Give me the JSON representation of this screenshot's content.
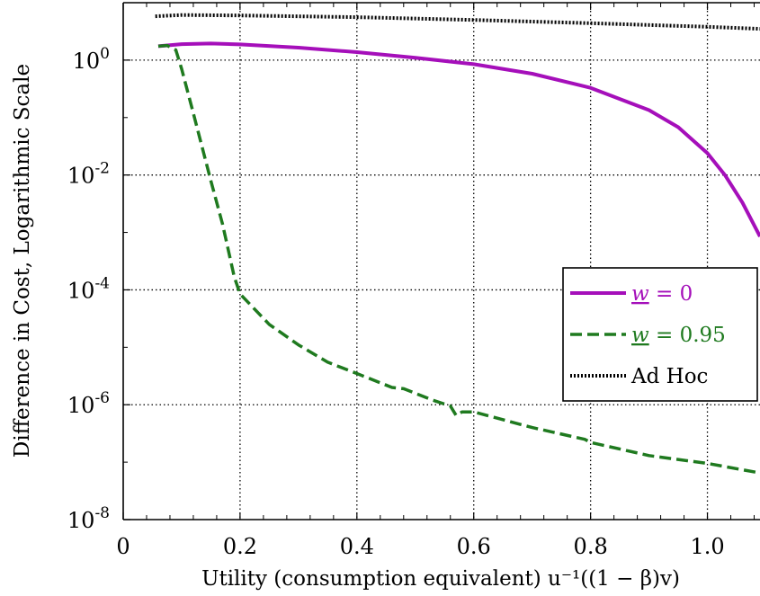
{
  "chart_data": {
    "type": "line",
    "xlabel": "Utility (consumption equivalent) u⁻¹((1 − β)v)",
    "ylabel": "Difference in Cost, Logarithmic Scale",
    "xlim": [
      0,
      1.09
    ],
    "ylim": [
      1e-08,
      10
    ],
    "yscale": "log",
    "grid": true,
    "legend_position": "right",
    "x_ticks": [
      0,
      0.2,
      0.4,
      0.6,
      0.8,
      1.0
    ],
    "x_tick_labels": [
      "0",
      "0.2",
      "0.4",
      "0.6",
      "0.8",
      "1.0"
    ],
    "y_ticks": [
      {
        "value": 1,
        "base": "10",
        "exp": "0"
      },
      {
        "value": 0.01,
        "base": "10",
        "exp": "-2"
      },
      {
        "value": 0.0001,
        "base": "10",
        "exp": "-4"
      },
      {
        "value": 1e-06,
        "base": "10",
        "exp": "-6"
      },
      {
        "value": 1e-08,
        "base": "10",
        "exp": "-8"
      }
    ],
    "series": [
      {
        "name": "w = 0",
        "name_var": "w",
        "name_rest": " = 0",
        "color": "#a50fba",
        "style": "solid",
        "points": [
          [
            0.06,
            1.75
          ],
          [
            0.1,
            1.9
          ],
          [
            0.15,
            1.95
          ],
          [
            0.2,
            1.88
          ],
          [
            0.3,
            1.65
          ],
          [
            0.4,
            1.38
          ],
          [
            0.5,
            1.1
          ],
          [
            0.6,
            0.85
          ],
          [
            0.7,
            0.58
          ],
          [
            0.8,
            0.33
          ],
          [
            0.9,
            0.135
          ],
          [
            0.95,
            0.068
          ],
          [
            1.0,
            0.024
          ],
          [
            1.03,
            0.01
          ],
          [
            1.06,
            0.0033
          ],
          [
            1.09,
            0.00085
          ]
        ]
      },
      {
        "name": "w = 0.95",
        "name_var": "w",
        "name_rest": " = 0.95",
        "color": "#1f7a1f",
        "style": "dashed",
        "points": [
          [
            0.06,
            1.75
          ],
          [
            0.075,
            1.8
          ],
          [
            0.09,
            1.5
          ],
          [
            0.1,
            0.7
          ],
          [
            0.12,
            0.12
          ],
          [
            0.15,
            0.008
          ],
          [
            0.17,
            0.0014
          ],
          [
            0.19,
            0.00017
          ],
          [
            0.2,
            8.5e-05
          ],
          [
            0.25,
            2.5e-05
          ],
          [
            0.3,
            1.1e-05
          ],
          [
            0.35,
            5.5e-06
          ],
          [
            0.4,
            3.5e-06
          ],
          [
            0.46,
            2e-06
          ],
          [
            0.48,
            1.9e-06
          ],
          [
            0.53,
            1.2e-06
          ],
          [
            0.56,
            9.5e-07
          ],
          [
            0.57,
            6.5e-07
          ],
          [
            0.58,
            7.5e-07
          ],
          [
            0.6,
            7.5e-07
          ],
          [
            0.7,
            4e-07
          ],
          [
            0.79,
            2.5e-07
          ],
          [
            0.8,
            2.2e-07
          ],
          [
            0.9,
            1.3e-07
          ],
          [
            1.0,
            9.5e-08
          ],
          [
            1.09,
            6.5e-08
          ]
        ]
      },
      {
        "name": "Ad Hoc",
        "color": "#000000",
        "style": "dotted",
        "points": [
          [
            0.055,
            5.8
          ],
          [
            0.1,
            6.1
          ],
          [
            0.2,
            6.0
          ],
          [
            0.4,
            5.6
          ],
          [
            0.6,
            5.0
          ],
          [
            0.8,
            4.4
          ],
          [
            1.0,
            3.8
          ],
          [
            1.09,
            3.5
          ]
        ]
      }
    ]
  }
}
